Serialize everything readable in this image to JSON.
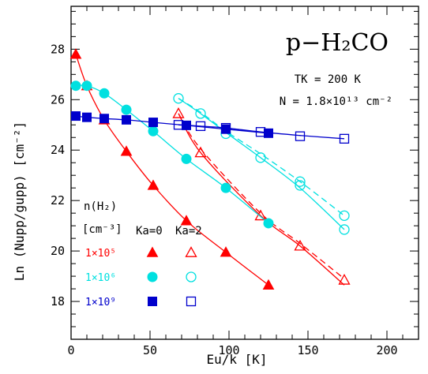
{
  "chart_data": {
    "type": "scatter",
    "title": "p−H₂CO",
    "xlabel": "Eu/k [K]",
    "ylabel": "Ln (Nupp/gupp) [cm⁻²]",
    "xlim": [
      0,
      220
    ],
    "ylim": [
      16.5,
      29.7
    ],
    "x_ticks": [
      0,
      50,
      100,
      150,
      200
    ],
    "y_ticks": [
      18,
      20,
      22,
      24,
      26,
      28
    ],
    "params": {
      "tk_label": "TK = 200 K",
      "n_label": "N = 1.8×10¹³ cm⁻²"
    },
    "legend": {
      "header_line1": "n(H₂)",
      "header_line2": "[cm⁻³]",
      "ka0_label": "Ka=0",
      "ka2_label": "Ka=2",
      "densities": [
        "1×10⁵",
        "1×10⁶",
        "1×10⁹"
      ]
    },
    "series": [
      {
        "name": "1×10⁵",
        "color": "#ff0000",
        "marker": "triangle",
        "ka0": {
          "x": [
            3,
            10,
            21,
            35,
            52,
            73,
            98,
            125
          ],
          "y": [
            27.8,
            26.55,
            25.2,
            23.95,
            22.6,
            21.2,
            19.95,
            18.65
          ]
        },
        "ka2": {
          "x": [
            68,
            82,
            120,
            145,
            173
          ],
          "y": [
            25.45,
            23.9,
            21.4,
            20.2,
            18.85
          ]
        },
        "ka2_model_solid": {
          "x": [
            68,
            82,
            120,
            145,
            173
          ],
          "y": [
            25.45,
            23.9,
            21.4,
            20.2,
            18.65
          ]
        },
        "ka2_model_dashed": {
          "x": [
            68,
            82,
            120,
            145,
            173
          ],
          "y": [
            25.45,
            24.05,
            21.5,
            20.3,
            18.9
          ]
        }
      },
      {
        "name": "1×10⁶",
        "color": "#00e0e0",
        "marker": "circle",
        "ka0": {
          "x": [
            3,
            10,
            21,
            35,
            52,
            73,
            98,
            125
          ],
          "y": [
            26.55,
            26.55,
            26.25,
            25.6,
            24.75,
            23.65,
            22.5,
            21.1
          ]
        },
        "ka2": {
          "x": [
            68,
            82,
            98,
            120,
            145,
            173
          ],
          "y": [
            26.05,
            25.45,
            24.65,
            23.7,
            22.6,
            20.85
          ]
        },
        "ka2_model_solid": {
          "x": [
            68,
            82,
            98,
            120,
            145,
            173
          ],
          "y": [
            26.05,
            25.45,
            24.7,
            23.7,
            22.5,
            20.85
          ]
        },
        "ka2_model_dashed": {
          "x": [
            68,
            82,
            98,
            120,
            145,
            173
          ],
          "y": [
            26.05,
            25.5,
            24.75,
            23.85,
            22.75,
            21.4
          ]
        },
        "ka2_extra": {
          "x": [
            145,
            173
          ],
          "y": [
            22.75,
            21.4
          ]
        }
      },
      {
        "name": "1×10⁹",
        "color": "#0000cc",
        "marker": "square",
        "ka0": {
          "x": [
            3,
            10,
            21,
            35,
            52,
            73,
            98,
            125
          ],
          "y": [
            25.35,
            25.3,
            25.25,
            25.2,
            25.1,
            24.98,
            24.83,
            24.67
          ]
        },
        "ka2": {
          "x": [
            68,
            82,
            98,
            120,
            145,
            173
          ],
          "y": [
            25.0,
            24.95,
            24.88,
            24.72,
            24.55,
            24.45
          ]
        },
        "ka2_model_solid": {
          "x": [
            68,
            82,
            98,
            120,
            145,
            173
          ],
          "y": [
            25.0,
            24.95,
            24.88,
            24.72,
            24.58,
            24.45
          ]
        }
      }
    ]
  }
}
